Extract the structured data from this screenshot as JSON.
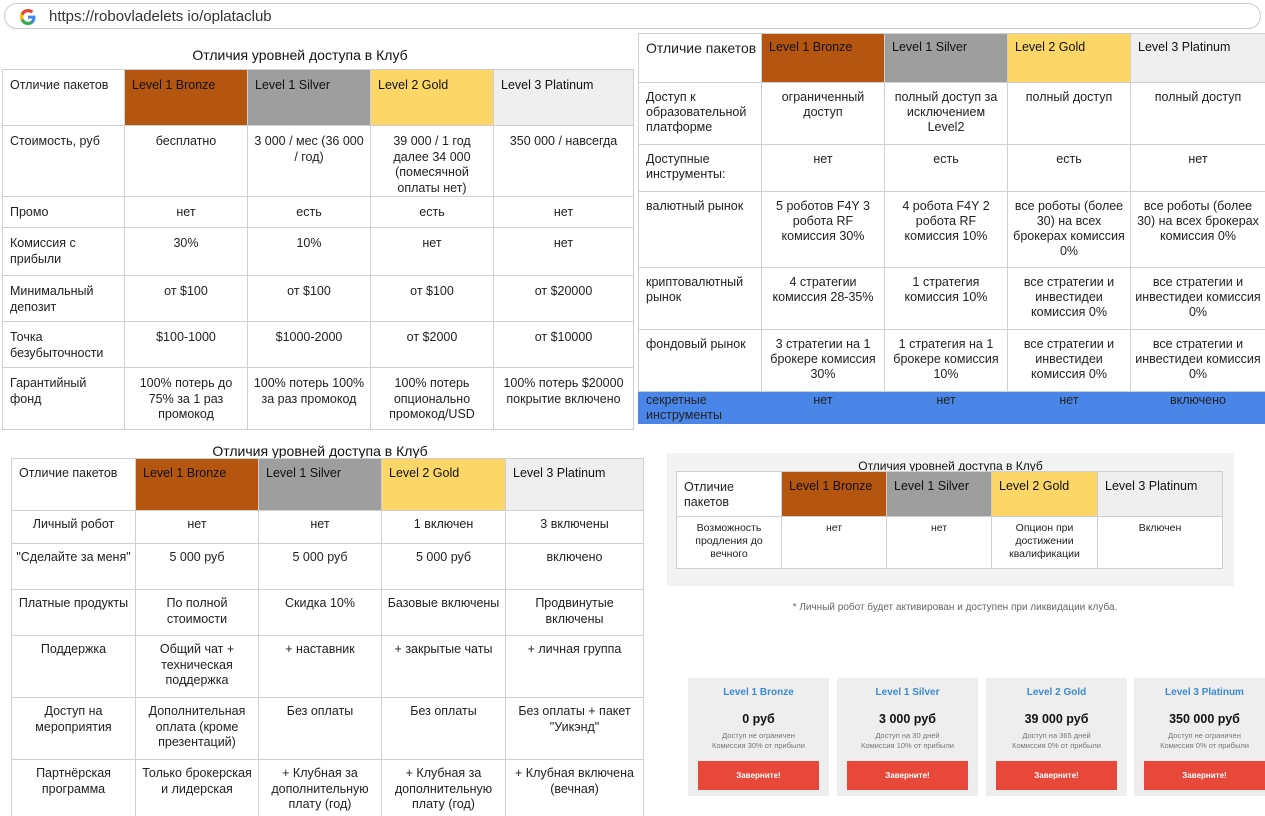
{
  "browser": {
    "url": "https://robovladelets io/oplataclub"
  },
  "levels": {
    "bronze": "Level 1 Bronze",
    "silver": "Level 1 Silver",
    "gold": "Level 2 Gold",
    "platinum": "Level 3 Platinum"
  },
  "colors": {
    "bronze": "#b4560f",
    "silver": "#9e9e9e",
    "gold": "#fcd666",
    "platinum": "#efefef",
    "secret_row": "#4a86e8",
    "button": "#e8483a",
    "card_title": "#3b8bd0"
  },
  "table1": {
    "title": "Отличия уровней доступа в Клуб",
    "header_label": "Отличие пакетов",
    "rows": [
      {
        "label": "Стоимость, руб",
        "cells": [
          "бесплатно",
          "3 000 / мес (36 000 / год)",
          "39 000 / 1 год далее 34 000 (помесячной оплаты нет)",
          "350 000 / навсегда"
        ]
      },
      {
        "label": "Промо",
        "cells": [
          "нет",
          "есть",
          "есть",
          "нет"
        ]
      },
      {
        "label": "Комиссия с прибыли",
        "cells": [
          "30%",
          "10%",
          "нет",
          "нет"
        ]
      },
      {
        "label": "Минимальный депозит",
        "cells": [
          "от $100",
          "от $100",
          "от $100",
          "от $20000"
        ]
      },
      {
        "label": "Точка безубыточности",
        "cells": [
          "$100-1000",
          "$1000-2000",
          "от $2000",
          "от $10000"
        ]
      },
      {
        "label": "Гарантийный фонд",
        "cells": [
          "100% потерь до 75% за 1 раз промокод",
          "100% потерь 100% за раз промокод",
          "100% потерь опционально промокод/USD",
          "100% потерь $20000 покрытие включено"
        ]
      }
    ]
  },
  "table2": {
    "header_label": "Отличие пакетов",
    "rows": [
      {
        "label": "Доступ к образовательной платформе",
        "cells": [
          "ограниченный доступ",
          "полный доступ за исключением Level2",
          "полный доступ",
          "полный доступ"
        ]
      },
      {
        "label": "Доступные инструменты:",
        "cells": [
          "нет",
          "есть",
          "есть",
          "нет"
        ]
      },
      {
        "label": "валютный рынок",
        "cells": [
          "5 роботов F4Y 3 робота RF комиссия 30%",
          "4 робота F4Y 2 робота RF комиссия 10%",
          "все роботы (более 30) на всех брокерах комиссия 0%",
          "все роботы (более 30) на всех брокерах комиссия 0%"
        ]
      },
      {
        "label": "криптовалютный рынок",
        "cells": [
          "4 стратегии комиссия 28-35%",
          "1 стратегия комиссия 10%",
          "все стратегии и инвестидеи комиссия 0%",
          "все стратегии и инвестидеи комиссия 0%"
        ]
      },
      {
        "label": "фондовый рынок",
        "cells": [
          "3 стратегии на 1 брокере комиссия 30%",
          "1 стратегия на 1 брокере комиссия 10%",
          "все стратегии и инвестидеи комиссия 0%",
          "все стратегии и инвестидеи комиссия 0%"
        ]
      },
      {
        "label": "секретные инструменты",
        "cells": [
          "нет",
          "нет",
          "нет",
          "включено"
        ]
      }
    ]
  },
  "table3": {
    "title": "Отличия уровней доступа в Клуб",
    "header_label": "Отличие пакетов",
    "rows": [
      {
        "label": "Личный робот",
        "cells": [
          "нет",
          "нет",
          "1 включен",
          "3 включены"
        ]
      },
      {
        "label": "\"Сделайте за меня\"",
        "cells": [
          "5 000 руб",
          "5 000 руб",
          "5 000 руб",
          "включено"
        ]
      },
      {
        "label": "Платные продукты",
        "cells": [
          "По полной стоимости",
          "Скидка 10%",
          "Базовые включены",
          "Продвинутые включены"
        ]
      },
      {
        "label": "Поддержка",
        "cells": [
          "Общий чат + техническая поддержка",
          "+ наставник",
          "+ закрытые чаты",
          "+ личная группа"
        ]
      },
      {
        "label": "Доступ на мероприятия",
        "cells": [
          "Дополнительная оплата (кроме презентаций)",
          "Без оплаты",
          "Без оплаты",
          "Без оплаты + пакет \"Уикэнд\""
        ]
      },
      {
        "label": "Партнёрская программа",
        "cells": [
          "Только брокерская и лидерская",
          "+ Клубная за дополнительную плату (год)",
          "+ Клубная за дополнительную плату (год)",
          "+ Клубная включена (вечная)"
        ]
      }
    ]
  },
  "table4": {
    "title": "Отличия уровней доступа в Клуб",
    "header_label": "Отличие пакетов",
    "rows": [
      {
        "label": "Возможность продления до вечного",
        "cells": [
          "нет",
          "нет",
          "Опцион при достижении квалификации",
          "Включен"
        ]
      }
    ],
    "note": "* Личный робот будет активирован и доступен при ликвидации клуба."
  },
  "cards": [
    {
      "name": "Level 1 Bronze",
      "price": "0 руб",
      "line1": "Доступ не ограничен",
      "line2": "Комиссия 30% от прибыли",
      "button": "Заверните!"
    },
    {
      "name": "Level 1 Silver",
      "price": "3 000 руб",
      "line1": "Доступ на 30 дней",
      "line2": "Комиссия 10% от прибыли",
      "button": "Заверните!"
    },
    {
      "name": "Level 2 Gold",
      "price": "39 000 руб",
      "line1": "Доступ на 365 дней",
      "line2": "Комиссия 0% от прибыли",
      "button": "Заверните!"
    },
    {
      "name": "Level 3 Platinum",
      "price": "350 000 руб",
      "line1": "Доступ не ограничен",
      "line2": "Комиссия 0% от прибыли",
      "button": "Заверните!"
    }
  ]
}
